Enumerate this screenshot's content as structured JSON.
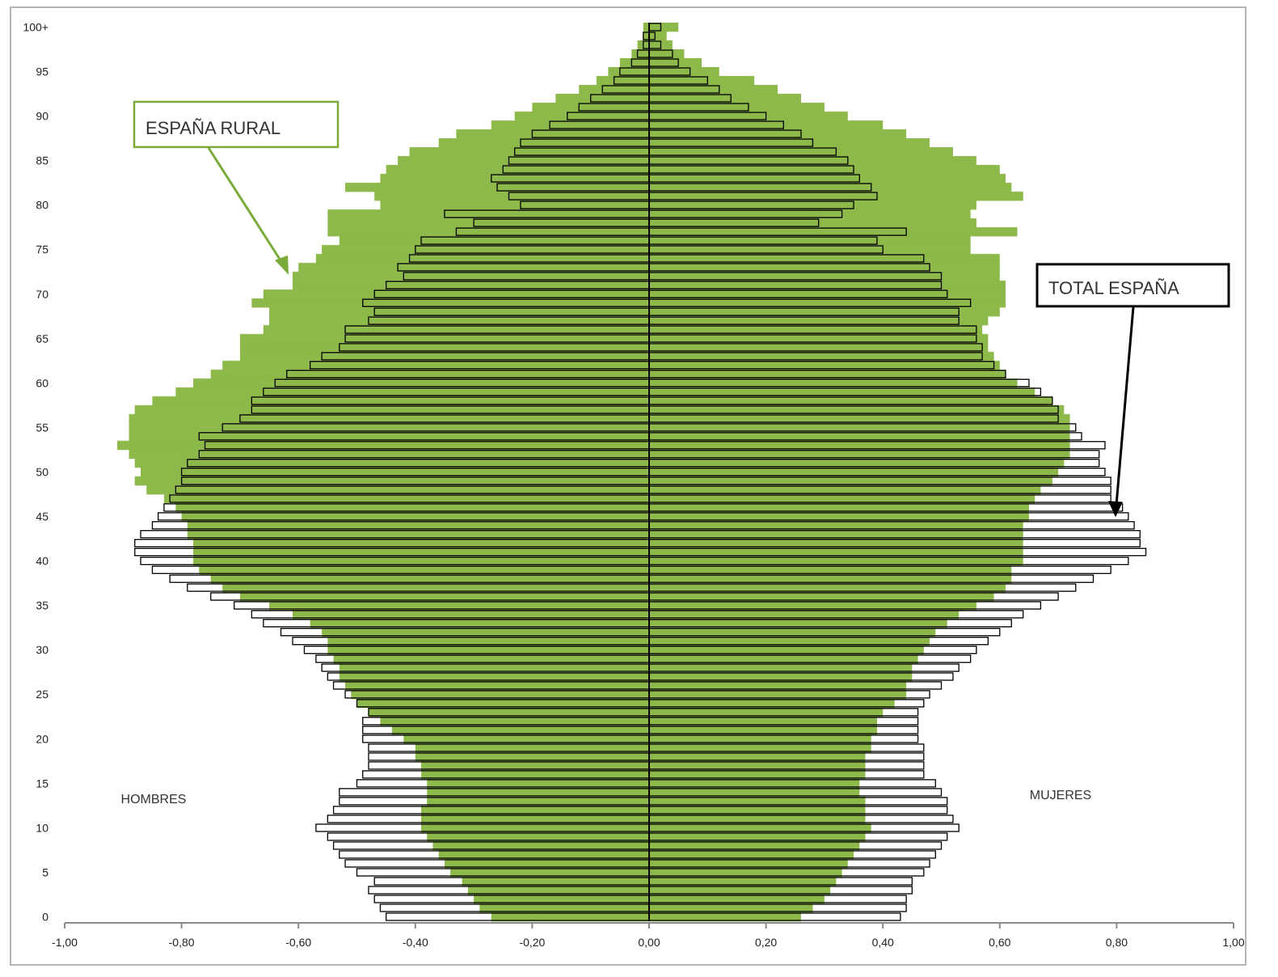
{
  "chart_data": {
    "type": "bar",
    "orientation": "horizontal-population-pyramid",
    "xlim": [
      -1.0,
      1.0
    ],
    "xticks": [
      "-1,00",
      "-0,80",
      "-0,60",
      "-0,40",
      "-0,20",
      "0,00",
      "0,20",
      "0,40",
      "0,60",
      "0,80",
      "1,00"
    ],
    "xtick_values": [
      -1.0,
      -0.8,
      -0.6,
      -0.4,
      -0.2,
      0.0,
      0.2,
      0.4,
      0.6,
      0.8,
      1.0
    ],
    "yticks": [
      "0",
      "5",
      "10",
      "15",
      "20",
      "25",
      "30",
      "35",
      "40",
      "45",
      "50",
      "55",
      "60",
      "65",
      "70",
      "75",
      "80",
      "85",
      "90",
      "95",
      "100+"
    ],
    "ages": [
      0,
      1,
      2,
      3,
      4,
      5,
      6,
      7,
      8,
      9,
      10,
      11,
      12,
      13,
      14,
      15,
      16,
      17,
      18,
      19,
      20,
      21,
      22,
      23,
      24,
      25,
      26,
      27,
      28,
      29,
      30,
      31,
      32,
      33,
      34,
      35,
      36,
      37,
      38,
      39,
      40,
      41,
      42,
      43,
      44,
      45,
      46,
      47,
      48,
      49,
      50,
      51,
      52,
      53,
      54,
      55,
      56,
      57,
      58,
      59,
      60,
      61,
      62,
      63,
      64,
      65,
      66,
      67,
      68,
      69,
      70,
      71,
      72,
      73,
      74,
      75,
      76,
      77,
      78,
      79,
      80,
      81,
      82,
      83,
      84,
      85,
      86,
      87,
      88,
      89,
      90,
      91,
      92,
      93,
      94,
      95,
      96,
      97,
      98,
      99,
      100
    ],
    "sidelabel_left": "HOMBRES",
    "sidelabel_right": "MUJERES",
    "series": [
      {
        "name": "ESPAÑA RURAL",
        "color": "#8db84a",
        "men": [
          0.27,
          0.29,
          0.3,
          0.31,
          0.32,
          0.34,
          0.35,
          0.36,
          0.37,
          0.38,
          0.39,
          0.39,
          0.39,
          0.38,
          0.38,
          0.38,
          0.39,
          0.39,
          0.4,
          0.4,
          0.42,
          0.44,
          0.46,
          0.48,
          0.5,
          0.51,
          0.52,
          0.53,
          0.53,
          0.54,
          0.55,
          0.55,
          0.56,
          0.58,
          0.61,
          0.65,
          0.7,
          0.73,
          0.75,
          0.77,
          0.78,
          0.78,
          0.78,
          0.79,
          0.79,
          0.8,
          0.81,
          0.83,
          0.86,
          0.88,
          0.87,
          0.88,
          0.89,
          0.91,
          0.89,
          0.89,
          0.89,
          0.88,
          0.85,
          0.81,
          0.78,
          0.75,
          0.73,
          0.7,
          0.7,
          0.7,
          0.66,
          0.65,
          0.65,
          0.68,
          0.66,
          0.61,
          0.61,
          0.6,
          0.57,
          0.56,
          0.53,
          0.55,
          0.55,
          0.55,
          0.46,
          0.47,
          0.52,
          0.46,
          0.45,
          0.43,
          0.41,
          0.36,
          0.33,
          0.27,
          0.23,
          0.2,
          0.16,
          0.12,
          0.09,
          0.07,
          0.05,
          0.03,
          0.02,
          0.01,
          0.01
        ],
        "women": [
          0.26,
          0.28,
          0.3,
          0.31,
          0.32,
          0.33,
          0.34,
          0.35,
          0.36,
          0.37,
          0.38,
          0.37,
          0.37,
          0.37,
          0.36,
          0.36,
          0.37,
          0.37,
          0.37,
          0.38,
          0.38,
          0.39,
          0.39,
          0.4,
          0.42,
          0.44,
          0.44,
          0.45,
          0.45,
          0.46,
          0.47,
          0.48,
          0.49,
          0.51,
          0.53,
          0.56,
          0.59,
          0.61,
          0.62,
          0.62,
          0.64,
          0.64,
          0.64,
          0.64,
          0.64,
          0.65,
          0.65,
          0.66,
          0.67,
          0.69,
          0.7,
          0.71,
          0.72,
          0.72,
          0.72,
          0.72,
          0.72,
          0.71,
          0.69,
          0.66,
          0.63,
          0.61,
          0.6,
          0.59,
          0.58,
          0.58,
          0.57,
          0.58,
          0.6,
          0.61,
          0.61,
          0.61,
          0.6,
          0.6,
          0.6,
          0.55,
          0.55,
          0.63,
          0.56,
          0.55,
          0.56,
          0.64,
          0.62,
          0.61,
          0.6,
          0.56,
          0.52,
          0.48,
          0.44,
          0.4,
          0.34,
          0.3,
          0.26,
          0.22,
          0.18,
          0.12,
          0.09,
          0.06,
          0.04,
          0.03,
          0.05
        ]
      },
      {
        "name": "TOTAL ESPAÑA",
        "color": "#ffffff",
        "men": [
          0.45,
          0.46,
          0.47,
          0.48,
          0.47,
          0.5,
          0.52,
          0.53,
          0.54,
          0.55,
          0.57,
          0.55,
          0.54,
          0.53,
          0.53,
          0.5,
          0.49,
          0.48,
          0.48,
          0.48,
          0.49,
          0.49,
          0.49,
          0.48,
          0.5,
          0.52,
          0.54,
          0.55,
          0.56,
          0.57,
          0.59,
          0.61,
          0.63,
          0.66,
          0.68,
          0.71,
          0.75,
          0.79,
          0.82,
          0.85,
          0.87,
          0.88,
          0.88,
          0.87,
          0.85,
          0.84,
          0.83,
          0.82,
          0.81,
          0.8,
          0.8,
          0.79,
          0.77,
          0.76,
          0.77,
          0.73,
          0.7,
          0.68,
          0.68,
          0.66,
          0.64,
          0.62,
          0.58,
          0.56,
          0.53,
          0.52,
          0.52,
          0.48,
          0.47,
          0.49,
          0.47,
          0.45,
          0.42,
          0.43,
          0.41,
          0.4,
          0.39,
          0.33,
          0.3,
          0.35,
          0.22,
          0.24,
          0.26,
          0.27,
          0.25,
          0.24,
          0.23,
          0.22,
          0.2,
          0.17,
          0.14,
          0.12,
          0.1,
          0.08,
          0.06,
          0.05,
          0.03,
          0.02,
          0.01,
          0.01,
          0.0
        ],
        "women": [
          0.43,
          0.44,
          0.44,
          0.45,
          0.45,
          0.47,
          0.48,
          0.49,
          0.5,
          0.51,
          0.53,
          0.52,
          0.51,
          0.51,
          0.5,
          0.49,
          0.47,
          0.47,
          0.47,
          0.47,
          0.46,
          0.46,
          0.46,
          0.46,
          0.47,
          0.48,
          0.5,
          0.52,
          0.53,
          0.55,
          0.56,
          0.58,
          0.6,
          0.62,
          0.64,
          0.67,
          0.7,
          0.73,
          0.76,
          0.79,
          0.82,
          0.85,
          0.84,
          0.84,
          0.83,
          0.82,
          0.81,
          0.79,
          0.79,
          0.79,
          0.78,
          0.77,
          0.77,
          0.78,
          0.74,
          0.73,
          0.7,
          0.7,
          0.69,
          0.67,
          0.65,
          0.61,
          0.59,
          0.57,
          0.57,
          0.56,
          0.56,
          0.53,
          0.53,
          0.55,
          0.51,
          0.5,
          0.5,
          0.48,
          0.47,
          0.4,
          0.39,
          0.44,
          0.29,
          0.33,
          0.35,
          0.39,
          0.38,
          0.36,
          0.35,
          0.34,
          0.32,
          0.28,
          0.26,
          0.23,
          0.2,
          0.17,
          0.14,
          0.12,
          0.1,
          0.07,
          0.05,
          0.04,
          0.02,
          0.01,
          0.02
        ]
      }
    ],
    "annotations": [
      {
        "name": "rural-callout",
        "text": "ESPAÑA RURAL",
        "color": "#7aab3a"
      },
      {
        "name": "total-callout",
        "text": "TOTAL ESPAÑA",
        "color": "#000000"
      }
    ]
  }
}
